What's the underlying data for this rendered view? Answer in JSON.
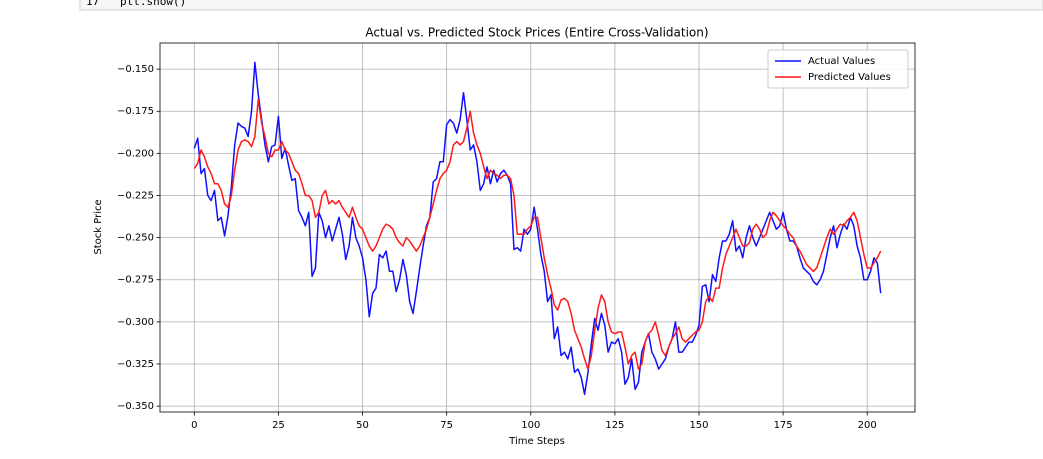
{
  "code_cell": {
    "line_number": "17",
    "code": "plt.show()"
  },
  "chart_data": {
    "type": "line",
    "title": "Actual vs. Predicted Stock Prices (Entire Cross-Validation)",
    "x_label": "Time Steps",
    "y_label": "Stock Price",
    "grid": true,
    "legend": "upper right",
    "x": [
      0,
      1,
      2,
      3,
      4,
      5,
      6,
      7,
      8,
      9,
      10,
      11,
      12,
      13,
      14,
      15,
      16,
      17,
      18,
      19,
      20,
      21,
      22,
      23,
      24,
      25,
      26,
      27,
      28,
      29,
      30,
      31,
      32,
      33,
      34,
      35,
      36,
      37,
      38,
      39,
      40,
      41,
      42,
      43,
      44,
      45,
      46,
      47,
      48,
      49,
      50,
      51,
      52,
      53,
      54,
      55,
      56,
      57,
      58,
      59,
      60,
      61,
      62,
      63,
      64,
      65,
      66,
      67,
      68,
      69,
      70,
      71,
      72,
      73,
      74,
      75,
      76,
      77,
      78,
      79,
      80,
      81,
      82,
      83,
      84,
      85,
      86,
      87,
      88,
      89,
      90,
      91,
      92,
      93,
      94,
      95,
      96,
      97,
      98,
      99,
      100,
      101,
      102,
      103,
      104,
      105,
      106,
      107,
      108,
      109,
      110,
      111,
      112,
      113,
      114,
      115,
      116,
      117,
      118,
      119,
      120,
      121,
      122,
      123,
      124,
      125,
      126,
      127,
      128,
      129,
      130,
      131,
      132,
      133,
      134,
      135,
      136,
      137,
      138,
      139,
      140,
      141,
      142,
      143,
      144,
      145,
      146,
      147,
      148,
      149,
      150,
      151,
      152,
      153,
      154,
      155,
      156,
      157,
      158,
      159,
      160,
      161,
      162,
      163,
      164,
      165,
      166,
      167,
      168,
      169,
      170,
      171,
      172,
      173,
      174,
      175,
      176,
      177,
      178,
      179,
      180,
      181,
      182,
      183,
      184,
      185,
      186,
      187,
      188,
      189,
      190,
      191,
      192,
      193,
      194,
      195,
      196,
      197,
      198,
      199,
      200,
      201,
      202,
      203,
      204
    ],
    "series": [
      {
        "name": "Actual Values",
        "color": "#1010ff",
        "values": [
          -0.197,
          -0.191,
          -0.212,
          -0.209,
          -0.225,
          -0.228,
          -0.222,
          -0.24,
          -0.238,
          -0.249,
          -0.237,
          -0.22,
          -0.195,
          -0.182,
          -0.184,
          -0.185,
          -0.19,
          -0.175,
          -0.146,
          -0.165,
          -0.18,
          -0.195,
          -0.205,
          -0.196,
          -0.195,
          -0.178,
          -0.203,
          -0.197,
          -0.207,
          -0.216,
          -0.215,
          -0.234,
          -0.238,
          -0.243,
          -0.235,
          -0.273,
          -0.268,
          -0.235,
          -0.24,
          -0.25,
          -0.243,
          -0.252,
          -0.245,
          -0.238,
          -0.248,
          -0.263,
          -0.255,
          -0.238,
          -0.25,
          -0.255,
          -0.262,
          -0.275,
          -0.297,
          -0.283,
          -0.28,
          -0.26,
          -0.262,
          -0.258,
          -0.27,
          -0.27,
          -0.282,
          -0.275,
          -0.263,
          -0.272,
          -0.288,
          -0.295,
          -0.282,
          -0.268,
          -0.255,
          -0.243,
          -0.238,
          -0.217,
          -0.215,
          -0.205,
          -0.205,
          -0.183,
          -0.18,
          -0.182,
          -0.188,
          -0.18,
          -0.164,
          -0.18,
          -0.198,
          -0.195,
          -0.205,
          -0.222,
          -0.218,
          -0.208,
          -0.218,
          -0.21,
          -0.217,
          -0.212,
          -0.21,
          -0.213,
          -0.218,
          -0.257,
          -0.256,
          -0.258,
          -0.245,
          -0.248,
          -0.245,
          -0.232,
          -0.245,
          -0.26,
          -0.27,
          -0.288,
          -0.284,
          -0.31,
          -0.303,
          -0.32,
          -0.318,
          -0.322,
          -0.315,
          -0.33,
          -0.328,
          -0.333,
          -0.343,
          -0.33,
          -0.313,
          -0.298,
          -0.305,
          -0.295,
          -0.302,
          -0.318,
          -0.312,
          -0.313,
          -0.31,
          -0.318,
          -0.337,
          -0.333,
          -0.322,
          -0.34,
          -0.336,
          -0.318,
          -0.312,
          -0.307,
          -0.318,
          -0.322,
          -0.328,
          -0.325,
          -0.322,
          -0.315,
          -0.31,
          -0.3,
          -0.318,
          -0.318,
          -0.315,
          -0.312,
          -0.312,
          -0.308,
          -0.302,
          -0.279,
          -0.278,
          -0.288,
          -0.272,
          -0.276,
          -0.262,
          -0.252,
          -0.252,
          -0.248,
          -0.24,
          -0.258,
          -0.255,
          -0.262,
          -0.25,
          -0.243,
          -0.25,
          -0.255,
          -0.25,
          -0.245,
          -0.24,
          -0.235,
          -0.24,
          -0.245,
          -0.243,
          -0.235,
          -0.245,
          -0.252,
          -0.252,
          -0.255,
          -0.262,
          -0.268,
          -0.27,
          -0.272,
          -0.276,
          -0.278,
          -0.275,
          -0.27,
          -0.26,
          -0.25,
          -0.243,
          -0.256,
          -0.248,
          -0.242,
          -0.245,
          -0.238,
          -0.243,
          -0.255,
          -0.262,
          -0.275,
          -0.275,
          -0.27,
          -0.262,
          -0.265,
          -0.283
        ]
      },
      {
        "name": "Predicted Values",
        "color": "#ff1a1a",
        "values": [
          -0.209,
          -0.206,
          -0.198,
          -0.202,
          -0.208,
          -0.212,
          -0.218,
          -0.218,
          -0.222,
          -0.23,
          -0.232,
          -0.225,
          -0.21,
          -0.198,
          -0.193,
          -0.192,
          -0.193,
          -0.196,
          -0.19,
          -0.168,
          -0.182,
          -0.19,
          -0.2,
          -0.202,
          -0.198,
          -0.198,
          -0.193,
          -0.198,
          -0.2,
          -0.205,
          -0.21,
          -0.212,
          -0.218,
          -0.225,
          -0.225,
          -0.228,
          -0.238,
          -0.235,
          -0.225,
          -0.222,
          -0.23,
          -0.228,
          -0.23,
          -0.228,
          -0.232,
          -0.235,
          -0.238,
          -0.232,
          -0.238,
          -0.243,
          -0.245,
          -0.25,
          -0.255,
          -0.258,
          -0.255,
          -0.25,
          -0.245,
          -0.242,
          -0.243,
          -0.245,
          -0.25,
          -0.253,
          -0.255,
          -0.25,
          -0.252,
          -0.255,
          -0.258,
          -0.255,
          -0.25,
          -0.245,
          -0.238,
          -0.23,
          -0.222,
          -0.215,
          -0.212,
          -0.21,
          -0.205,
          -0.195,
          -0.193,
          -0.195,
          -0.193,
          -0.185,
          -0.175,
          -0.188,
          -0.195,
          -0.2,
          -0.208,
          -0.215,
          -0.21,
          -0.212,
          -0.213,
          -0.215,
          -0.213,
          -0.213,
          -0.215,
          -0.225,
          -0.248,
          -0.248,
          -0.248,
          -0.245,
          -0.243,
          -0.238,
          -0.238,
          -0.25,
          -0.262,
          -0.272,
          -0.28,
          -0.29,
          -0.293,
          -0.287,
          -0.286,
          -0.288,
          -0.295,
          -0.305,
          -0.31,
          -0.315,
          -0.322,
          -0.328,
          -0.32,
          -0.305,
          -0.292,
          -0.284,
          -0.288,
          -0.3,
          -0.306,
          -0.307,
          -0.306,
          -0.306,
          -0.315,
          -0.325,
          -0.32,
          -0.318,
          -0.328,
          -0.325,
          -0.312,
          -0.307,
          -0.305,
          -0.3,
          -0.308,
          -0.317,
          -0.32,
          -0.315,
          -0.31,
          -0.307,
          -0.303,
          -0.31,
          -0.312,
          -0.31,
          -0.308,
          -0.306,
          -0.305,
          -0.3,
          -0.288,
          -0.285,
          -0.288,
          -0.28,
          -0.28,
          -0.268,
          -0.26,
          -0.255,
          -0.25,
          -0.245,
          -0.25,
          -0.255,
          -0.255,
          -0.253,
          -0.245,
          -0.242,
          -0.245,
          -0.25,
          -0.248,
          -0.24,
          -0.235,
          -0.237,
          -0.24,
          -0.243,
          -0.245,
          -0.248,
          -0.25,
          -0.255,
          -0.258,
          -0.262,
          -0.266,
          -0.268,
          -0.27,
          -0.268,
          -0.262,
          -0.256,
          -0.25,
          -0.245,
          -0.248,
          -0.245,
          -0.242,
          -0.243,
          -0.24,
          -0.238,
          -0.235,
          -0.24,
          -0.25,
          -0.26,
          -0.268,
          -0.268,
          -0.265,
          -0.262,
          -0.258
        ]
      }
    ],
    "xlim": [
      -10.2,
      214.2
    ],
    "xticks": [
      0,
      25,
      50,
      75,
      100,
      125,
      150,
      175,
      200
    ],
    "ylim": [
      -0.3535,
      -0.1345
    ],
    "yticks": [
      {
        "value": -0.35,
        "label": "−0.350"
      },
      {
        "value": -0.325,
        "label": "−0.325"
      },
      {
        "value": -0.3,
        "label": "−0.300"
      },
      {
        "value": -0.275,
        "label": "−0.275"
      },
      {
        "value": -0.25,
        "label": "−0.250"
      },
      {
        "value": -0.225,
        "label": "−0.225"
      },
      {
        "value": -0.2,
        "label": "−0.200"
      },
      {
        "value": -0.175,
        "label": "−0.175"
      },
      {
        "value": -0.15,
        "label": "−0.150"
      }
    ]
  }
}
